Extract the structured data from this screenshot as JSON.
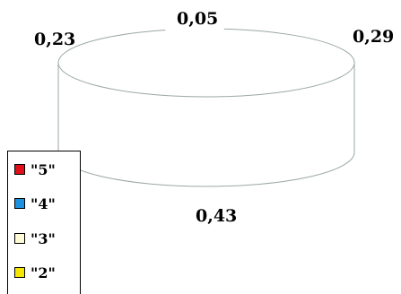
{
  "chart_data": {
    "type": "pie",
    "style": "3d-outline",
    "slices": [
      {
        "label": "\"5\"",
        "value": 0.05,
        "value_label": "0,05",
        "color": "#e0101a"
      },
      {
        "label": "\"4\"",
        "value": 0.29,
        "value_label": "0,29",
        "color": "#1e90e0"
      },
      {
        "label": "\"3\"",
        "value": 0.43,
        "value_label": "0,43",
        "color": "#fffbd6"
      },
      {
        "label": "\"2\"",
        "value": 0.23,
        "value_label": "0,23",
        "color": "#f5e600"
      }
    ],
    "legend_placement": "bottom-left",
    "outline_color": "#9aa7a6"
  }
}
